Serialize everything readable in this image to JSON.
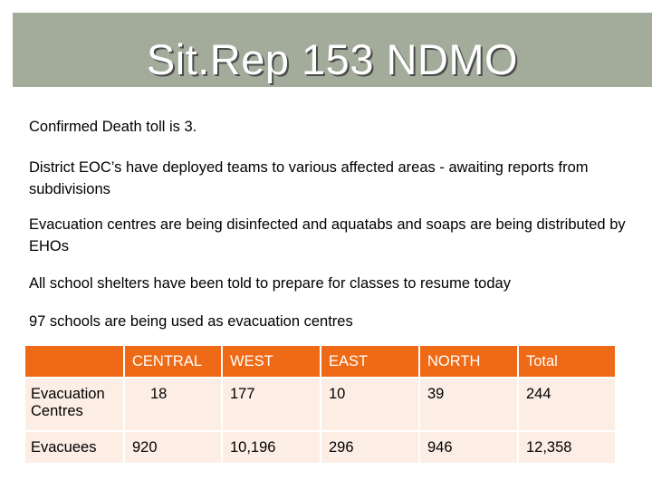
{
  "title": "Sit.Rep 153 NDMO",
  "paragraphs": [
    "Confirmed Death toll is 3.",
    "District EOC’s have deployed teams to various affected areas  - awaiting reports from subdivisions",
    "Evacuation centres are being disinfected and aquatabs and soaps are being distributed by EHOs",
    "All school shelters have been told to prepare for classes to resume today",
    "97 schools are being used as evacuation centres"
  ],
  "table": {
    "columns": [
      "",
      "CENTRAL",
      "WEST",
      "EAST",
      "NORTH",
      "Total"
    ],
    "rows": [
      {
        "label": "Evacuation Centres",
        "values": [
          "18",
          "177",
          "10",
          "39",
          "244"
        ]
      },
      {
        "label": "Evacuees",
        "values": [
          "920",
          "10,196",
          "296",
          "946",
          "12,358"
        ]
      }
    ]
  },
  "colors": {
    "title_bar": "#a3ab9a",
    "header_row": "#ef6a16",
    "row_fill": "#fdeee5"
  }
}
